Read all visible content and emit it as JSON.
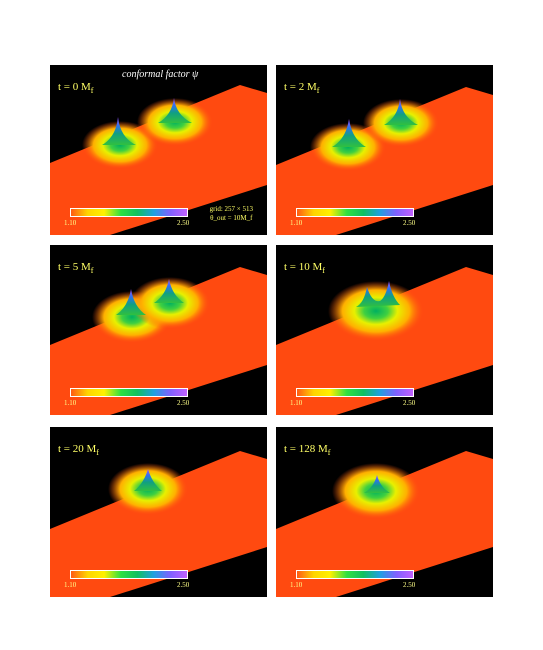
{
  "figure": {
    "caption": "conformal factor ψ",
    "grid_info_line1": "grid: 257 × 513",
    "grid_info_line2": "θ_out = 10M_f",
    "panels": [
      {
        "time_label": "t = 0",
        "unit": "M",
        "unit_sub": "f",
        "colorbar_min": "1.10",
        "colorbar_max": "2.50"
      },
      {
        "time_label": "t = 2",
        "unit": "M",
        "unit_sub": "f",
        "colorbar_min": "1.10",
        "colorbar_max": "2.50"
      },
      {
        "time_label": "t = 5",
        "unit": "M",
        "unit_sub": "f",
        "colorbar_min": "1.10",
        "colorbar_max": "2.50"
      },
      {
        "time_label": "t = 10",
        "unit": "M",
        "unit_sub": "f",
        "colorbar_min": "1.10",
        "colorbar_max": "2.50"
      },
      {
        "time_label": "t = 20",
        "unit": "M",
        "unit_sub": "f",
        "colorbar_min": "1.10",
        "colorbar_max": "2.50"
      },
      {
        "time_label": "t = 128",
        "unit": "M",
        "unit_sub": "f",
        "colorbar_min": "1.10",
        "colorbar_max": "2.50"
      }
    ]
  }
}
